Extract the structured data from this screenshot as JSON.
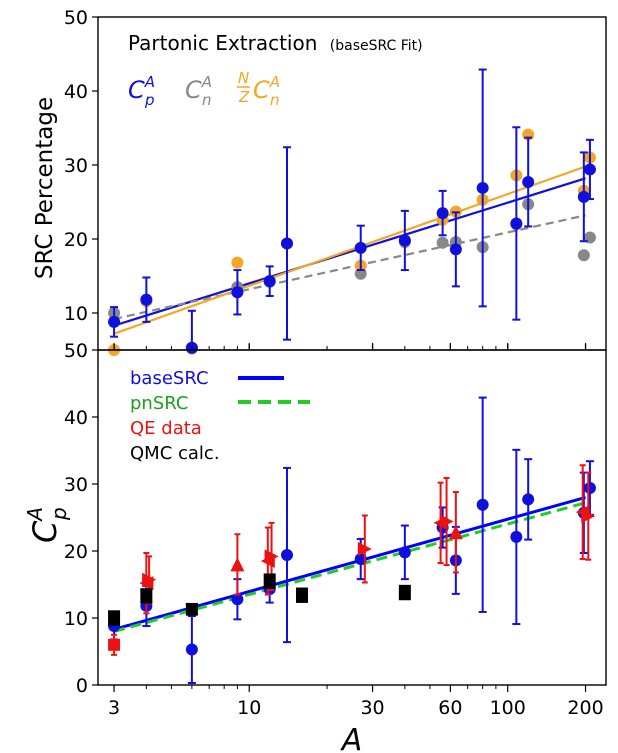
{
  "colors": {
    "proton": "#1010dd",
    "neutron": "#888888",
    "nz_neutron": "#f5a623",
    "base_line": "#0000ff",
    "pn_line": "#22cc22",
    "qe": "#ee1111",
    "qmc": "#000000"
  },
  "xlabel": "A",
  "chart_data": [
    {
      "type": "scatter",
      "title": "Partonic Extraction",
      "subtitle": "(baseSRC Fit)",
      "ylabel": "SRC Percentage",
      "xscale": "log",
      "xlim": [
        2.6,
        240
      ],
      "ylim": [
        5,
        50
      ],
      "yticks": [
        10,
        20,
        30,
        40,
        50
      ],
      "grid": false,
      "legend_labels": {
        "cp_main": "C",
        "cp_sup": "A",
        "cp_sub": "p",
        "cn_main": "C",
        "cn_sup": "A",
        "cn_sub": "n",
        "nz_num": "N",
        "nz_den": "Z",
        "nzc_main": "C",
        "nzc_sup": "A",
        "nzc_sub": "n"
      },
      "series": [
        {
          "key": "Cp",
          "x": [
            3,
            4,
            6,
            9,
            12,
            14,
            27,
            40,
            56,
            63,
            80,
            108,
            120,
            197,
            208
          ],
          "y": [
            8.8,
            11.8,
            5.3,
            12.8,
            14.3,
            19.4,
            18.8,
            19.8,
            23.5,
            18.6,
            26.9,
            22.1,
            27.7,
            25.7,
            29.4
          ],
          "yerr": [
            2.0,
            3.0,
            5.0,
            3.0,
            2.0,
            13.0,
            3.0,
            4.0,
            3.0,
            5.0,
            16.0,
            13.0,
            6.0,
            6.0,
            4.0
          ]
        },
        {
          "key": "Cn",
          "x": [
            3,
            4,
            6,
            9,
            12,
            14,
            27,
            40,
            56,
            63,
            80,
            108,
            120,
            197,
            208
          ],
          "y": [
            10.0,
            11.6,
            5.2,
            13.5,
            14.2,
            19.4,
            15.3,
            19.6,
            19.5,
            19.6,
            18.9,
            22.0,
            24.7,
            17.8,
            20.2
          ]
        },
        {
          "key": "NZCn",
          "x": [
            3,
            4,
            6,
            9,
            12,
            14,
            27,
            40,
            56,
            63,
            80,
            108,
            120,
            197,
            208
          ],
          "y": [
            5.0,
            11.6,
            5.3,
            16.8,
            14.3,
            19.4,
            16.4,
            19.8,
            22.6,
            23.7,
            25.3,
            28.6,
            34.1,
            26.5,
            31.0
          ]
        }
      ],
      "fits": [
        {
          "key": "Cp",
          "x": [
            3,
            200
          ],
          "y": [
            8.3,
            28.2
          ],
          "style": "solid"
        },
        {
          "key": "Cn",
          "x": [
            3,
            200
          ],
          "y": [
            9.2,
            23.2
          ],
          "style": "dashed"
        },
        {
          "key": "NZCn",
          "x": [
            3,
            200
          ],
          "y": [
            7.2,
            29.8
          ],
          "style": "solid"
        }
      ]
    },
    {
      "type": "scatter",
      "ylabel_main": "C",
      "ylabel_sup": "A",
      "ylabel_sub": "p",
      "xscale": "log",
      "xlim": [
        2.6,
        240
      ],
      "ylim": [
        0,
        50
      ],
      "yticks": [
        0,
        10,
        20,
        30,
        40,
        50
      ],
      "xticks": [
        3,
        10,
        30,
        60,
        100,
        200
      ],
      "grid": false,
      "legend": [
        "baseSRC",
        "pnSRC",
        "QE data",
        "QMC calc."
      ],
      "legend_placement": "top-left",
      "series": [
        {
          "key": "Cp",
          "x": [
            3,
            4,
            6,
            9,
            12,
            14,
            27,
            40,
            56,
            63,
            80,
            108,
            120,
            197,
            208
          ],
          "y": [
            8.8,
            11.8,
            5.3,
            12.8,
            14.3,
            19.4,
            18.8,
            19.8,
            23.5,
            18.6,
            26.9,
            22.1,
            27.7,
            25.7,
            29.4
          ],
          "yerr": [
            2.0,
            3.0,
            5.0,
            3.0,
            2.0,
            13.0,
            3.0,
            4.0,
            3.0,
            5.0,
            16.0,
            13.0,
            6.0,
            6.0,
            4.0
          ]
        },
        {
          "key": "QE",
          "x": [
            3,
            4,
            4.1,
            9,
            11.8,
            12.2,
            28,
            55,
            58,
            63,
            195,
            205
          ],
          "y": [
            6.0,
            15.2,
            15.7,
            18.0,
            18.5,
            19.2,
            20.3,
            24.2,
            24.4,
            22.8,
            25.8,
            25.2
          ],
          "yerr": [
            1.5,
            4.5,
            3.5,
            4.5,
            5.0,
            5.0,
            5.0,
            6.0,
            6.5,
            6.0,
            7.0,
            6.5
          ],
          "marker": [
            "square",
            "left",
            "right",
            "up",
            "left",
            "right",
            "right",
            "left",
            "right",
            "up",
            "left",
            "right"
          ]
        },
        {
          "key": "QMC",
          "x": [
            3,
            4,
            6,
            12,
            16,
            40
          ],
          "y": [
            10.0,
            13.3,
            11.3,
            15.5,
            13.4,
            13.8
          ],
          "yerr": [
            1.0,
            1.0,
            0.8,
            1.0,
            1.0,
            1.0
          ]
        }
      ],
      "fits": [
        {
          "key": "base",
          "x": [
            3,
            200
          ],
          "y": [
            8.3,
            28.0
          ],
          "style": "solid"
        },
        {
          "key": "pn",
          "x": [
            3,
            200
          ],
          "y": [
            8.0,
            27.2
          ],
          "style": "dashed"
        }
      ]
    }
  ]
}
